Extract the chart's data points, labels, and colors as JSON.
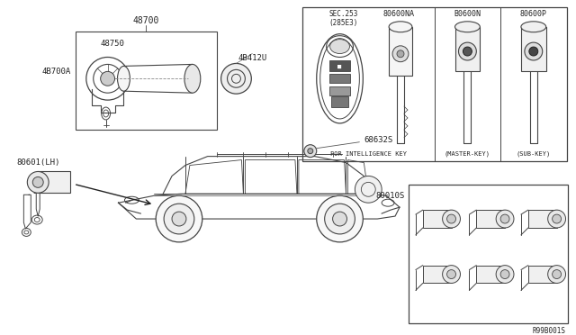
{
  "bg_color": "#f0f0f0",
  "line_color": "#444444",
  "dark_line": "#222222",
  "labels": {
    "top_bracket": "48700",
    "inner_top": "48750",
    "right_label": "4B412U",
    "left_label": "4B700A",
    "bottom_left_lock": "80601(LH)",
    "center_part": "68632S",
    "key_set": "80010S",
    "diagram_ref": "R99B001S",
    "sec_label": "SEC.253",
    "sec_sub": "(285E3)",
    "key1_label": "80600NA",
    "key2_label": "B0600N",
    "key3_label": "80600P",
    "foot1": "FOR INTELLIGENCE KEY",
    "foot2": "(MASTER-KEY)",
    "foot3": "(SUB-KEY)"
  }
}
